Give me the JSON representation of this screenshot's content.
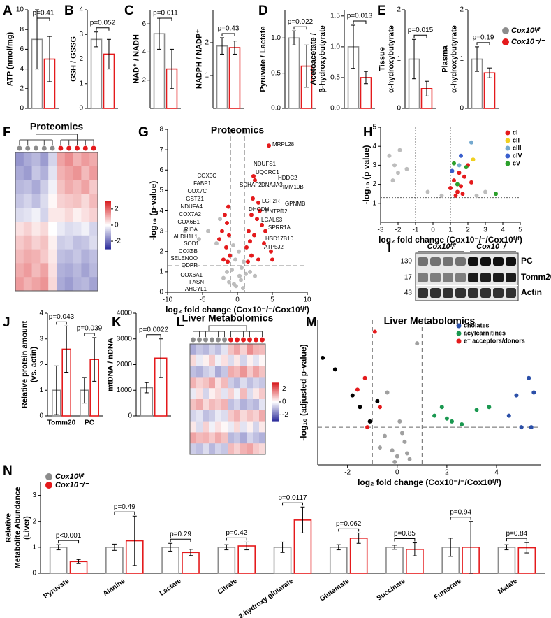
{
  "chart_data": [
    {
      "type": "bar",
      "panel": "A",
      "ylabel": "ATP (nmol/mg)",
      "values": [
        7,
        5
      ],
      "errors": [
        3,
        2.3
      ],
      "colors": [
        "#8c8c8c",
        "#e41a1c"
      ],
      "ylim": [
        0,
        10
      ],
      "yticks": [
        0,
        2,
        4,
        6,
        8,
        10
      ],
      "pvalue": "p=0.41"
    },
    {
      "type": "bar",
      "panel": "B",
      "ylabel": "GSH / GSSG",
      "values": [
        2.8,
        2.2
      ],
      "errors": [
        0.3,
        0.6
      ],
      "colors": [
        "#8c8c8c",
        "#e41a1c"
      ],
      "ylim": [
        0,
        4
      ],
      "yticks": [
        0,
        1,
        2,
        3,
        4
      ],
      "pvalue": "p=0.052"
    },
    {
      "type": "bar",
      "panel": "C",
      "ylabel": "NAD⁺ / NADH",
      "values": [
        5.3,
        2.8
      ],
      "errors": [
        1.1,
        1.4
      ],
      "colors": [
        "#8c8c8c",
        "#e41a1c"
      ],
      "ylim": [
        0,
        7
      ],
      "yticks": [
        2,
        4,
        6
      ],
      "pvalue": "p=0.011"
    },
    {
      "type": "bar",
      "ylabel": "NADPH / NADP⁺",
      "values": [
        1.9,
        1.85
      ],
      "errors": [
        0.25,
        0.2
      ],
      "colors": [
        "#8c8c8c",
        "#e41a1c"
      ],
      "ylim": [
        0,
        3
      ],
      "yticks": [
        1,
        2
      ],
      "pvalue": "p=0.43"
    },
    {
      "type": "bar",
      "panel": "D",
      "ylabel": "Pyruvate / Lactate",
      "values": [
        1.0,
        0.6
      ],
      "errors": [
        0.1,
        0.3
      ],
      "colors": [
        "#8c8c8c",
        "#e41a1c"
      ],
      "ylim": [
        0,
        1.4
      ],
      "yticks": [
        {
          "value": 0,
          "label": "0.0"
        },
        {
          "value": 0.5,
          "label": "0.5"
        },
        {
          "value": 1,
          "label": "1.0"
        }
      ],
      "pvalue": "p=0.022"
    },
    {
      "type": "bar",
      "ylabel": [
        "Acetoacetate /",
        "β-hydroxybutyrate"
      ],
      "values": [
        1.0,
        0.5
      ],
      "errors": [
        0.35,
        0.1
      ],
      "colors": [
        "#8c8c8c",
        "#e41a1c"
      ],
      "ylim": [
        0,
        1.6
      ],
      "yticks": [
        {
          "value": 0,
          "label": "0.0"
        },
        {
          "value": 0.5,
          "label": "0.5"
        },
        {
          "value": 1,
          "label": "1.0"
        },
        {
          "value": 1.5,
          "label": "1.5"
        }
      ],
      "pvalue": "p=0.013"
    },
    {
      "type": "bar",
      "panel": "E",
      "ylabel": [
        "Tissue",
        "α-hydroxybutyrate"
      ],
      "values": [
        1.0,
        0.4
      ],
      "errors": [
        0.4,
        0.15
      ],
      "colors": [
        "#8c8c8c",
        "#e41a1c"
      ],
      "ylim": [
        0,
        2
      ],
      "yticks": [
        0,
        1,
        2
      ],
      "pvalue": "p=0.015"
    },
    {
      "type": "bar",
      "ylabel": [
        "Plasma",
        "α-hydroxybutyrate"
      ],
      "values": [
        1.0,
        0.72
      ],
      "errors": [
        0.25,
        0.1
      ],
      "colors": [
        "#8c8c8c",
        "#e41a1c"
      ],
      "ylim": [
        0,
        2
      ],
      "yticks": [
        0,
        1,
        2
      ],
      "pvalue": "p=0.19",
      "legend": [
        "Cox10ᶠ/ᶠ",
        "Cox10⁻/⁻"
      ]
    },
    {
      "type": "heatmap",
      "panel": "F",
      "title": "Proteomics",
      "column_colors": [
        "#8c8c8c",
        "#8c8c8c",
        "#8c8c8c",
        "#8c8c8c",
        "#8c8c8c",
        "#e41a1c",
        "#e41a1c",
        "#e41a1c",
        "#e41a1c",
        "#e41a1c"
      ],
      "colorbar_lim": [
        -3,
        3
      ],
      "colorbar_ticks": [
        2,
        0,
        -2
      ],
      "values": [
        [
          -1.5,
          -1.2,
          -1.0,
          -1.4,
          -0.6,
          1.2,
          1.5,
          1.0,
          1.3,
          1.1
        ],
        [
          -1.2,
          -1.4,
          -0.8,
          -1.1,
          -0.4,
          1.0,
          1.2,
          1.4,
          0.9,
          1.3
        ],
        [
          -1.0,
          -0.9,
          -1.2,
          -0.7,
          -0.2,
          0.8,
          1.1,
          0.9,
          1.2,
          0.7
        ],
        [
          -0.8,
          -0.6,
          -0.9,
          -0.5,
          0.1,
          0.6,
          0.7,
          0.8,
          0.5,
          0.9
        ],
        [
          -0.5,
          -0.4,
          -0.2,
          -0.6,
          0.3,
          0.3,
          0.5,
          0.2,
          0.4,
          0.6
        ],
        [
          0.4,
          0.6,
          0.3,
          0.5,
          0.0,
          -0.3,
          -0.5,
          -0.4,
          -0.2,
          -0.6
        ],
        [
          0.7,
          0.9,
          0.6,
          0.8,
          0.2,
          -0.7,
          -0.6,
          -0.9,
          -0.8,
          -0.5
        ],
        [
          0.9,
          1.1,
          1.0,
          0.7,
          0.3,
          -0.9,
          -1.0,
          -0.8,
          -1.1,
          -0.9
        ],
        [
          1.1,
          1.3,
          0.9,
          1.2,
          0.4,
          -1.1,
          -1.2,
          -1.0,
          -1.3,
          -1.0
        ],
        [
          1.3,
          1.0,
          1.2,
          1.4,
          0.5,
          -1.2,
          -1.4,
          -1.1,
          -1.0,
          -1.3
        ]
      ]
    },
    {
      "type": "scatter",
      "panel": "G",
      "title": "Proteomics",
      "xlabel": "log₂ fold change (Cox10⁻/⁻/Cox10ᶠ/ᶠ)",
      "ylabel": "-log₁₀ (p-value)",
      "xlim": [
        -10,
        10
      ],
      "xticks": [
        -10,
        -5,
        0,
        5,
        10
      ],
      "ylim": [
        0,
        8
      ],
      "yticks": [
        0,
        1,
        2,
        3,
        4,
        5,
        6,
        7,
        8
      ],
      "thresholds": {
        "x": [
          -1,
          1
        ],
        "y": 1.3
      },
      "series": [
        {
          "color": "#bdbdbd",
          "x": [
            -0.5,
            0.3,
            -0.8,
            0.6,
            -0.2,
            0.9,
            -1.0,
            0.2,
            -0.6,
            0.5,
            -1.5,
            1.2,
            -3,
            -4.2,
            -5.5,
            -7.5,
            -2.5,
            6.3,
            -0.3,
            0.8,
            -1.2,
            1.8,
            -2.0,
            2.5
          ],
          "values": [
            0.4,
            0.8,
            1.1,
            1.2,
            0.3,
            1.5,
            1.8,
            2.0,
            2.3,
            0.6,
            1.0,
            0.9,
            2.4,
            3.0,
            2.6,
            3.0,
            3.6,
            4.0,
            1.6,
            0.2,
            0.5,
            1.0,
            0.7,
            0.8
          ]
        },
        {
          "color": "#e41a1c",
          "x": [
            4.5,
            2.3,
            2.5,
            2.2,
            3.0,
            3.2,
            2.0,
            2.8,
            3.5,
            1.6,
            4.0,
            2.4,
            1.8,
            3.8,
            4.8,
            1.3,
            2.0,
            3.0,
            1.5,
            5.0,
            -1.3,
            -1.8,
            -1.5,
            -2.2,
            -1.2,
            -2.6,
            -1.6,
            -1.1,
            -2.0,
            -1.4
          ],
          "values": [
            7.2,
            5.7,
            5.5,
            4.6,
            4.4,
            4.0,
            3.8,
            3.6,
            3.3,
            3.0,
            3.0,
            2.8,
            2.5,
            2.4,
            2.0,
            2.2,
            1.8,
            1.6,
            1.5,
            1.6,
            4.2,
            3.8,
            3.4,
            3.0,
            2.8,
            2.6,
            2.2,
            1.8,
            1.6,
            1.5
          ]
        }
      ],
      "annotations": [
        "MRPL28",
        "NDUFS1",
        "UQCRC1",
        "SDHAF2",
        "DNAJA3",
        "HDDC2",
        "TIMM10B",
        "LGF2R",
        "GPNMB",
        "DHODH",
        "ENTPD2",
        "LGALS3",
        "SPRR1A",
        "HSD17B10",
        "ATP5J2",
        "COX6C",
        "FABP1",
        "COX7C",
        "GSTZ1",
        "NDUFA4",
        "COX7A2",
        "COX6B1",
        "RIDA",
        "ALDH1L1",
        "SOD1",
        "COX5B",
        "SELENOO",
        "QDPR",
        "COX6A1",
        "FASN",
        "AHCYL1"
      ]
    },
    {
      "type": "scatter",
      "panel": "H",
      "xlabel": "log₂ fold change (Cox10⁻/⁻/Cox10ᶠ/ᶠ)",
      "ylabel": "-log₁₀ (p value)",
      "xlim": [
        -3,
        5
      ],
      "xticks": [
        -3,
        -2,
        -1,
        0,
        1,
        2,
        3,
        4,
        5
      ],
      "ylim": [
        0,
        5
      ],
      "yticks": [
        1,
        2,
        3,
        4,
        5
      ],
      "thresholds": {
        "x": [
          -1,
          1
        ],
        "y": 1.3
      },
      "legend_position": "top-right",
      "series": [
        {
          "color": "#bdbdbd",
          "x": [
            -2.5,
            -2.2,
            -1.9,
            -2.0,
            -1.5,
            -2.3,
            -0.3,
            0.5,
            3.0,
            2.5
          ],
          "values": [
            3.5,
            3.0,
            3.8,
            2.6,
            2.8,
            2.2,
            1.6,
            1.4,
            1.6,
            1.4
          ]
        },
        {
          "name": "cI",
          "color": "#e41a1c",
          "x": [
            1.0,
            1.2,
            1.4,
            1.5,
            1.6,
            1.8,
            2.0,
            1.3,
            1.7,
            2.2
          ],
          "values": [
            1.8,
            2.2,
            1.6,
            2.6,
            1.9,
            2.4,
            3.0,
            1.4,
            1.5,
            2.1
          ]
        },
        {
          "name": "cII",
          "color": "#f0d020",
          "x": [
            2.3
          ],
          "values": [
            3.3
          ]
        },
        {
          "name": "cIII",
          "color": "#74a9cf",
          "x": [
            2.2,
            1.5
          ],
          "values": [
            4.2,
            3.0
          ]
        },
        {
          "name": "cIV",
          "color": "#3a5fcd",
          "x": [
            1.1,
            1.6
          ],
          "values": [
            2.7,
            3.5
          ]
        },
        {
          "name": "cV",
          "color": "#2ca02c",
          "x": [
            1.2,
            1.9,
            3.6,
            1.4
          ],
          "values": [
            3.1,
            2.9,
            1.5,
            2.0
          ]
        }
      ]
    },
    {
      "type": "blot",
      "panel": "I",
      "groups": [
        "Cox10ᶠ/ᶠ",
        "Cox10⁻/⁻"
      ],
      "markers": [
        "130",
        "17",
        "43"
      ],
      "proteins": [
        "PC",
        "Tomm20",
        "Actin"
      ]
    },
    {
      "type": "bar",
      "panel": "J",
      "ylabel": [
        "Relative protein amount",
        "(vs. actin)"
      ],
      "categories": [
        "Tomm20",
        "PC"
      ],
      "series": [
        {
          "color": "#8c8c8c",
          "values": [
            1.0,
            1.0
          ],
          "errors": [
            0.95,
            0.5
          ]
        },
        {
          "color": "#e41a1c",
          "values": [
            2.6,
            2.2
          ],
          "errors": [
            0.9,
            0.85
          ]
        }
      ],
      "ylim": [
        0,
        4
      ],
      "yticks": [
        0,
        1,
        2,
        3,
        4
      ],
      "pvalues": [
        "p=0.043",
        "p=0.039"
      ]
    },
    {
      "type": "bar",
      "panel": "K",
      "ylabel": "mtDNA / nDNA",
      "values": [
        1100,
        2250
      ],
      "errors": [
        200,
        750
      ],
      "colors": [
        "#8c8c8c",
        "#e41a1c"
      ],
      "ylim": [
        0,
        4000
      ],
      "yticks": [
        0,
        1000,
        2000,
        3000,
        4000
      ],
      "pvalue": "p=0.0022"
    },
    {
      "type": "heatmap",
      "panel": "L",
      "title": "Liver Metabolomics",
      "column_colors": [
        "#8c8c8c",
        "#8c8c8c",
        "#8c8c8c",
        "#8c8c8c",
        "#8c8c8c",
        "#8c8c8c",
        "#e41a1c",
        "#e41a1c",
        "#e41a1c",
        "#e41a1c",
        "#e41a1c",
        "#e41a1c"
      ],
      "colorbar_lim": [
        -3,
        3
      ],
      "colorbar_ticks": [
        2,
        0,
        -2
      ],
      "values": [
        [
          -1.2,
          -0.8,
          -1.0,
          -0.6,
          -0.9,
          -0.4,
          0.8,
          1.2,
          0.6,
          1.5,
          1.0,
          0.9
        ],
        [
          0.5,
          -0.3,
          0.2,
          0.7,
          -0.2,
          0.4,
          -0.5,
          0.3,
          -0.6,
          0.2,
          -0.4,
          0.1
        ],
        [
          -0.9,
          -1.1,
          -0.7,
          -0.5,
          -1.2,
          -0.8,
          1.1,
          0.9,
          1.4,
          0.7,
          1.2,
          0.8
        ],
        [
          1.0,
          0.6,
          0.8,
          1.2,
          0.4,
          0.9,
          -0.7,
          -1.0,
          -0.5,
          -0.9,
          -0.6,
          -0.8
        ],
        [
          -0.3,
          0.4,
          -0.6,
          0.2,
          0.5,
          -0.4,
          0.6,
          -0.2,
          0.9,
          -0.5,
          0.3,
          0.7
        ],
        [
          0.8,
          1.1,
          0.5,
          0.9,
          0.7,
          1.0,
          -0.9,
          -0.6,
          -1.1,
          -0.8,
          -1.0,
          -0.4
        ],
        [
          -0.6,
          -0.4,
          -0.9,
          -0.7,
          -0.3,
          -0.5,
          0.7,
          1.0,
          0.5,
          0.8,
          0.6,
          1.1
        ],
        [
          0.3,
          -0.5,
          0.6,
          -0.2,
          0.4,
          0.1,
          -0.3,
          0.5,
          -0.4,
          0.2,
          -0.6,
          0.3
        ],
        [
          1.2,
          0.9,
          1.0,
          0.7,
          1.1,
          0.8,
          -1.0,
          -0.8,
          -1.2,
          -0.6,
          -0.9,
          -1.1
        ],
        [
          -0.7,
          -0.9,
          -0.5,
          -1.0,
          -0.6,
          -0.8,
          0.9,
          0.6,
          1.0,
          1.2,
          0.7,
          0.5
        ]
      ]
    },
    {
      "type": "scatter",
      "panel": "M",
      "title": "Liver Metabolomics",
      "xlabel": "log₂ fold change (Cox10⁻/⁻/Cox10ᶠ/ᶠ)",
      "ylabel": "-log₁₀ (adjusted p-value)",
      "xlim": [
        -3.2,
        5.8
      ],
      "xticks": [
        -2,
        0,
        2,
        4
      ],
      "ylim": [
        0,
        5
      ],
      "thresholds": {
        "x": [
          -1,
          1
        ],
        "y": 1.3
      },
      "legend_position": "top-right",
      "series": [
        {
          "color": "#a0a0a0",
          "x": [
            -0.5,
            -0.2,
            0,
            0.3,
            0.1,
            -0.4,
            0.5,
            -0.7,
            0.2,
            0.8,
            -0.1,
            0.4
          ],
          "values": [
            1.0,
            0.5,
            0.3,
            0.8,
            1.5,
            2.5,
            0.2,
            0.6,
            1.1,
            4.2,
            0.1,
            0.4
          ]
        },
        {
          "color": "#000000",
          "x": [
            -3.0,
            -2.5,
            -1.8,
            -1.5,
            -1.1,
            -0.8
          ],
          "values": [
            3.7,
            3.3,
            2.4,
            2.0,
            1.5,
            2.2
          ]
        },
        {
          "name": "cholates",
          "color": "#2b4fa8",
          "x": [
            5.3,
            5.5,
            4.8,
            5.4,
            5.0,
            4.5
          ],
          "values": [
            3.0,
            2.5,
            2.4,
            1.3,
            1.3,
            1.7
          ]
        },
        {
          "name": "acylcarnitines",
          "color": "#1a9850",
          "x": [
            1.8,
            2.2,
            2.6,
            3.2,
            3.7,
            1.5,
            2.0
          ],
          "values": [
            2.0,
            1.5,
            1.4,
            1.9,
            2.0,
            1.7,
            1.6
          ]
        },
        {
          "name": "e⁻ acceptors/donors",
          "color": "#e41a1c",
          "x": [
            -1.6,
            -1.3,
            -0.9,
            -0.7,
            -1.2
          ],
          "values": [
            2.6,
            3.0,
            4.6,
            2.0,
            1.3
          ]
        }
      ]
    },
    {
      "type": "bar",
      "panel": "N",
      "ylabel": [
        "Relative",
        "Metabolite Abundance",
        "(Liver)"
      ],
      "categories": [
        "Pyruvate",
        "Alanine",
        "Lactate",
        "Citrate",
        "2-hydroxy glutarate",
        "Glutamate",
        "Succinate",
        "Fumarate",
        "Malate"
      ],
      "xtick_rotation": -35,
      "series": [
        {
          "name": "Cox10ᶠ/ᶠ",
          "color": "#8c8c8c",
          "values": [
            1.0,
            1.0,
            1.0,
            1.0,
            1.0,
            1.0,
            1.0,
            1.0,
            1.0
          ],
          "errors": [
            0.1,
            0.12,
            0.15,
            0.1,
            0.2,
            0.1,
            0.08,
            0.35,
            0.1
          ]
        },
        {
          "name": "Cox10⁻/⁻",
          "color": "#e41a1c",
          "values": [
            0.45,
            1.25,
            0.8,
            1.05,
            2.05,
            1.35,
            0.92,
            1.0,
            0.98
          ],
          "errors": [
            0.08,
            0.95,
            0.12,
            0.15,
            0.5,
            0.2,
            0.25,
            1.0,
            0.2
          ]
        }
      ],
      "ylim": [
        0,
        3.5
      ],
      "yticks": [
        0,
        1,
        2,
        3
      ],
      "pvalues": [
        "p<0.001",
        "p=0.49",
        "p=0.29",
        "p=0.42",
        "p=0.0117",
        "p=0.062",
        "p=0.85",
        "p=0.94",
        "p=0.84"
      ]
    }
  ]
}
